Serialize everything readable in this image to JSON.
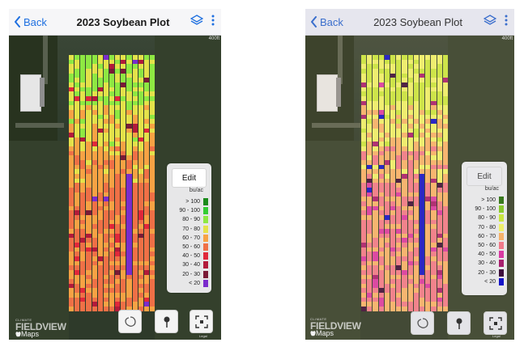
{
  "screens": [
    {
      "nav": {
        "back_label": "Back",
        "title": "2023 Soybean Plot"
      },
      "legend": {
        "edit_label": "Edit",
        "unit": "bu/ac",
        "ranges": [
          {
            "label": "> 100",
            "color": "#1a8a1a"
          },
          {
            "label": "90 - 100",
            "color": "#33cc33"
          },
          {
            "label": "80 - 90",
            "color": "#8ee842"
          },
          {
            "label": "70 - 80",
            "color": "#e4e24a"
          },
          {
            "label": "60 - 70",
            "color": "#f7a244"
          },
          {
            "label": "50 - 60",
            "color": "#ef7046"
          },
          {
            "label": "40 - 50",
            "color": "#e0283a"
          },
          {
            "label": "30 - 40",
            "color": "#b21a3a"
          },
          {
            "label": "20 - 30",
            "color": "#7a1a36"
          },
          {
            "label": "< 20",
            "color": "#7b2ccc"
          }
        ]
      },
      "brand": {
        "climate": "CLIMATE",
        "fieldview": "FIELDVIEW",
        "maps": "Maps"
      },
      "legal": "Legal",
      "scale_tag": "400ft",
      "icons": [
        "chevron-left-icon",
        "layers-icon",
        "more-vertical-icon",
        "lasso-icon",
        "pin-icon",
        "recenter-icon"
      ]
    },
    {
      "nav": {
        "back_label": "Back",
        "title": "2023 Soybean Plot"
      },
      "legend": {
        "edit_label": "Edit",
        "unit": "bu/ac",
        "ranges": [
          {
            "label": "> 100",
            "color": "#3a7a1e"
          },
          {
            "label": "90 - 100",
            "color": "#8acb2e"
          },
          {
            "label": "80 - 90",
            "color": "#c9e640"
          },
          {
            "label": "70 - 80",
            "color": "#eef06a"
          },
          {
            "label": "60 - 70",
            "color": "#f6b26a"
          },
          {
            "label": "50 - 60",
            "color": "#f07a8a"
          },
          {
            "label": "40 - 50",
            "color": "#d93aa2"
          },
          {
            "label": "30 - 40",
            "color": "#a8206e"
          },
          {
            "label": "20 - 30",
            "color": "#3e0e3a"
          },
          {
            "label": "< 20",
            "color": "#1414c8"
          }
        ]
      },
      "brand": {
        "climate": "CLIMATE",
        "fieldview": "FIELDVIEW",
        "maps": "Maps"
      },
      "legal": "Legal",
      "scale_tag": "400ft",
      "icons": [
        "chevron-left-icon",
        "layers-icon",
        "more-vertical-icon",
        "lasso-icon",
        "pin-icon",
        "recenter-icon"
      ]
    }
  ]
}
